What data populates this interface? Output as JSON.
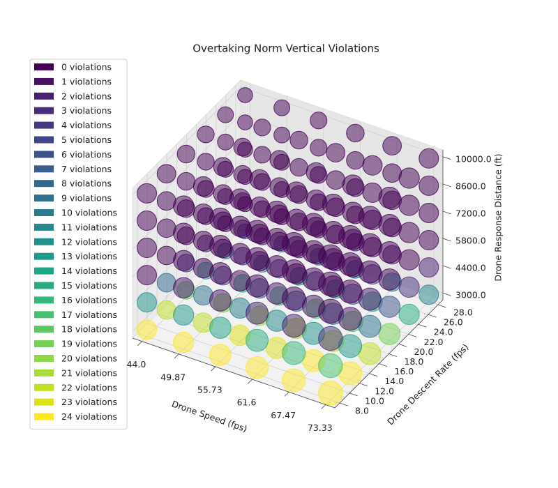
{
  "chart_data": {
    "type": "scatter3d",
    "title": "Overtaking Norm Vertical Violations",
    "x_label": "Drone Speed (fps)",
    "y_label": "Drone Descent Rate (fps)",
    "z_label": "Drone Response Distance (ft)",
    "x": [
      44,
      49.87,
      55.73,
      61.6,
      67.47,
      73.33
    ],
    "y": [
      8,
      12,
      16,
      20,
      24,
      28
    ],
    "z": [
      3000,
      4400,
      5800,
      7200,
      8600,
      10000
    ],
    "xlim": [
      42.5,
      74.8
    ],
    "ylim": [
      7,
      29
    ],
    "zlim": [
      2650,
      10350
    ],
    "xticks": [
      {
        "value": 44,
        "label": "44.0"
      },
      49.87,
      55.73,
      61.6,
      67.47,
      73.33
    ],
    "yticks": [
      {
        "value": 8,
        "label": "8.0"
      },
      {
        "value": 10,
        "label": "10.0"
      },
      {
        "value": 12,
        "label": "12.0"
      },
      {
        "value": 14,
        "label": "14.0"
      },
      {
        "value": 16,
        "label": "16.0"
      },
      {
        "value": 18,
        "label": "18.0"
      },
      {
        "value": 20,
        "label": "20.0"
      },
      {
        "value": 22,
        "label": "22.0"
      },
      {
        "value": 24,
        "label": "24.0"
      },
      {
        "value": 26,
        "label": "26.0"
      },
      {
        "value": 28,
        "label": "28.0"
      }
    ],
    "zticks": [
      {
        "value": 3000,
        "label": "3000.0"
      },
      {
        "value": 4400,
        "label": "4400.0"
      },
      {
        "value": 5800,
        "label": "5800.0"
      },
      {
        "value": 7200,
        "label": "7200.0"
      },
      {
        "value": 8600,
        "label": "8600.0"
      },
      {
        "value": 10000,
        "label": "10000.0"
      }
    ],
    "violations": [
      [
        [
          24,
          12,
          0,
          0,
          0,
          0
        ],
        [
          22,
          8,
          0,
          0,
          0,
          0
        ],
        [
          18,
          4,
          0,
          0,
          0,
          0
        ],
        [
          14,
          2,
          0,
          0,
          0,
          0
        ],
        [
          10,
          1,
          0,
          0,
          0,
          0
        ],
        [
          6,
          0,
          0,
          0,
          0,
          0
        ]
      ],
      [
        [
          24,
          13,
          1,
          0,
          0,
          0
        ],
        [
          22,
          9,
          0,
          0,
          0,
          0
        ],
        [
          19,
          5,
          0,
          0,
          0,
          0
        ],
        [
          15,
          3,
          0,
          0,
          0,
          0
        ],
        [
          11,
          1,
          0,
          0,
          0,
          0
        ],
        [
          7,
          0,
          0,
          0,
          0,
          0
        ]
      ],
      [
        [
          24,
          14,
          1,
          0,
          0,
          0
        ],
        [
          23,
          10,
          0,
          0,
          0,
          0
        ],
        [
          20,
          6,
          0,
          0,
          0,
          0
        ],
        [
          16,
          3,
          0,
          0,
          0,
          0
        ],
        [
          12,
          2,
          0,
          0,
          0,
          0
        ],
        [
          8,
          1,
          0,
          0,
          0,
          0
        ]
      ],
      [
        [
          24,
          15,
          2,
          0,
          0,
          0
        ],
        [
          23,
          11,
          1,
          0,
          0,
          0
        ],
        [
          21,
          7,
          0,
          0,
          0,
          0
        ],
        [
          17,
          4,
          0,
          0,
          0,
          0
        ],
        [
          13,
          2,
          0,
          0,
          0,
          0
        ],
        [
          9,
          1,
          0,
          0,
          0,
          0
        ]
      ],
      [
        [
          24,
          16,
          2,
          0,
          0,
          0
        ],
        [
          24,
          12,
          1,
          0,
          0,
          0
        ],
        [
          21,
          8,
          0,
          0,
          0,
          0
        ],
        [
          18,
          5,
          0,
          0,
          0,
          0
        ],
        [
          14,
          3,
          0,
          0,
          0,
          0
        ],
        [
          10,
          1,
          0,
          0,
          0,
          0
        ]
      ],
      [
        [
          24,
          17,
          3,
          0,
          0,
          0
        ],
        [
          24,
          13,
          1,
          0,
          0,
          0
        ],
        [
          22,
          9,
          1,
          0,
          0,
          0
        ],
        [
          19,
          6,
          0,
          0,
          0,
          0
        ],
        [
          15,
          3,
          0,
          0,
          0,
          0
        ],
        [
          11,
          2,
          0,
          0,
          0,
          0
        ]
      ]
    ],
    "colors": [
      "#440154",
      "#471164",
      "#481f70",
      "#472d7b",
      "#443983",
      "#404688",
      "#3b528b",
      "#365d8d",
      "#31688e",
      "#2c728e",
      "#287c8e",
      "#24868e",
      "#21918c",
      "#1f9a8a",
      "#20a486",
      "#27ad81",
      "#35b779",
      "#47c16e",
      "#5dc863",
      "#75d054",
      "#8fd744",
      "#a8db34",
      "#c2df23",
      "#dde318",
      "#fde725"
    ],
    "legend_labels": [
      "0 violations",
      "1 violations",
      "2 violations",
      "3 violations",
      "4 violations",
      "5 violations",
      "6 violations",
      "7 violations",
      "8 violations",
      "9 violations",
      "10 violations",
      "11 violations",
      "12 violations",
      "13 violations",
      "14 violations",
      "15 violations",
      "16 violations",
      "17 violations",
      "18 violations",
      "19 violations",
      "20 violations",
      "21 violations",
      "22 violations",
      "23 violations",
      "24 violations"
    ],
    "legend_position": "upper left",
    "grid": true
  }
}
